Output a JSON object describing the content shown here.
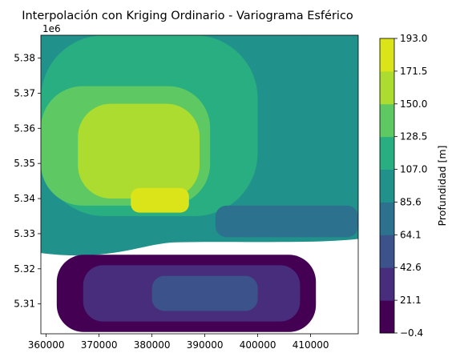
{
  "chart_data": {
    "type": "contourf",
    "title": "Interpolación con Kriging Ordinario - Variograma Esférico",
    "xlabel": "",
    "ylabel": "",
    "xlim": [
      359000,
      419000
    ],
    "ylim": [
      5301500,
      5386500
    ],
    "y_offset_label": "1e6",
    "x_ticks": [
      360000,
      370000,
      380000,
      390000,
      400000,
      410000
    ],
    "x_tick_labels": [
      "360000",
      "370000",
      "380000",
      "390000",
      "400000",
      "410000"
    ],
    "y_ticks": [
      5310000,
      5320000,
      5330000,
      5340000,
      5350000,
      5360000,
      5370000,
      5380000
    ],
    "y_tick_labels": [
      "5.31",
      "5.32",
      "5.33",
      "5.34",
      "5.35",
      "5.36",
      "5.37",
      "5.38"
    ],
    "colorbar": {
      "label": "Profundidad [m]",
      "levels": [
        -0.4,
        21.1,
        42.6,
        64.1,
        85.6,
        107.0,
        128.5,
        150.0,
        171.5,
        193.0
      ],
      "level_labels": [
        "−0.4",
        "21.1",
        "42.6",
        "64.1",
        "85.6",
        "107.0",
        "128.5",
        "150.0",
        "171.5",
        "193.0"
      ],
      "colors": [
        "#440154",
        "#472d7b",
        "#3b528b",
        "#2c728e",
        "#21918c",
        "#28ae80",
        "#5ec962",
        "#addc30",
        "#dbe418"
      ]
    },
    "regions": [
      {
        "level": 4,
        "x0": 359000,
        "x1": 419000,
        "y0": 5331000,
        "y1": 5386500
      },
      {
        "level": 5,
        "x0": 359000,
        "x1": 400000,
        "y0": 5335000,
        "y1": 5386500
      },
      {
        "level": 6,
        "x0": 359000,
        "x1": 391000,
        "y0": 5338000,
        "y1": 5372000
      },
      {
        "level": 7,
        "x0": 366000,
        "x1": 389000,
        "y0": 5340000,
        "y1": 5367000
      },
      {
        "level": 8,
        "x0": 376000,
        "x1": 387000,
        "y0": 5336000,
        "y1": 5343000
      },
      {
        "level": 3,
        "x0": 392000,
        "x1": 419000,
        "y0": 5329000,
        "y1": 5338000
      },
      {
        "level": 0,
        "x0": 362000,
        "x1": 411000,
        "y0": 5302000,
        "y1": 5324000
      },
      {
        "level": 1,
        "x0": 367000,
        "x1": 408000,
        "y0": 5305000,
        "y1": 5321000
      },
      {
        "level": 2,
        "x0": 380000,
        "x1": 400000,
        "y0": 5308000,
        "y1": 5318000
      }
    ],
    "no_data_color": "#ffffff"
  }
}
